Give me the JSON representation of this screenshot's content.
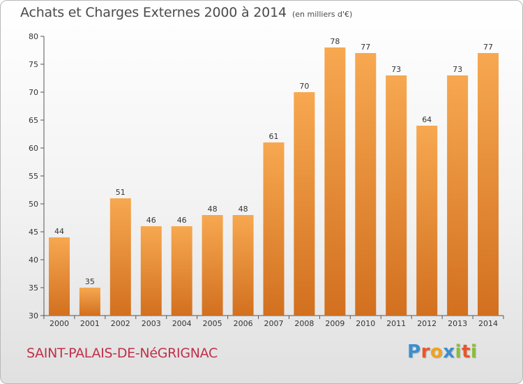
{
  "header": {
    "title": "Achats et Charges Externes 2000 à 2014",
    "subtitle": "(en milliers d'€)"
  },
  "footer": {
    "commune": "SAINT-PALAIS-DE-NéGRIGNAC",
    "brand": {
      "letters": [
        "P",
        "r",
        "o",
        "x",
        "i",
        "t",
        "i"
      ],
      "colors": [
        "#3a8fd0",
        "#e8562a",
        "#f2a31b",
        "#3a8fd0",
        "#8bbd3a",
        "#e8562a",
        "#8bbd3a"
      ]
    }
  },
  "chart_data": {
    "type": "bar",
    "categories": [
      "2000",
      "2001",
      "2002",
      "2003",
      "2004",
      "2005",
      "2006",
      "2007",
      "2008",
      "2009",
      "2010",
      "2011",
      "2012",
      "2013",
      "2014"
    ],
    "values": [
      44,
      35,
      51,
      46,
      46,
      48,
      48,
      61,
      70,
      78,
      77,
      73,
      64,
      73,
      77
    ],
    "ylim": [
      30,
      80
    ],
    "yticks": [
      30,
      35,
      40,
      45,
      50,
      55,
      60,
      65,
      70,
      75,
      80
    ],
    "grid": false,
    "bar_color": "#f39a3e",
    "bar_color_dark": "#d2701f"
  }
}
